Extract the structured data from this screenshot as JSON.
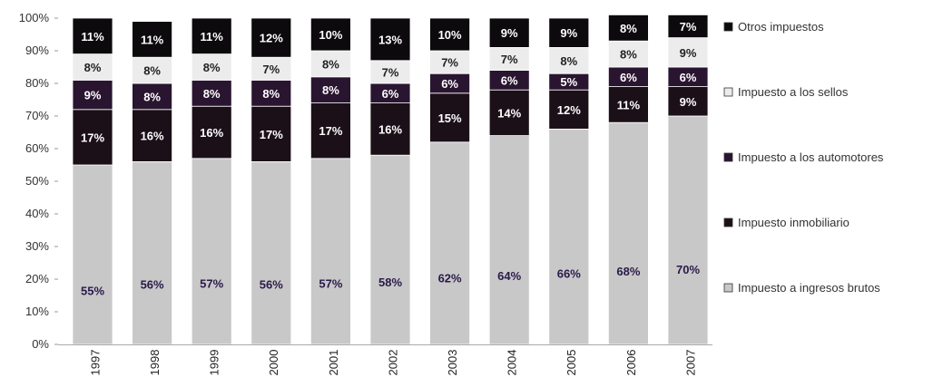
{
  "chart_data": {
    "type": "bar",
    "stacked": true,
    "percent": true,
    "title": "",
    "xlabel": "",
    "ylabel": "",
    "ylim": [
      0,
      100
    ],
    "y_ticks": [
      "0%",
      "10%",
      "20%",
      "30%",
      "40%",
      "50%",
      "60%",
      "70%",
      "80%",
      "90%",
      "100%"
    ],
    "categories": [
      "1997",
      "1998",
      "1999",
      "2000",
      "2001",
      "2002",
      "2003",
      "2004",
      "2005",
      "2006",
      "2007"
    ],
    "legend_position": "right",
    "series": [
      {
        "name": "Impuesto a ingresos brutos",
        "color": "#c8c8c8",
        "label_color": "#2a1a4a",
        "values": [
          55,
          56,
          57,
          56,
          57,
          58,
          62,
          64,
          66,
          68,
          70
        ]
      },
      {
        "name": "Impuesto inmobiliario",
        "color": "#1c1018",
        "label_color": "#ffffff",
        "values": [
          17,
          16,
          16,
          17,
          17,
          16,
          15,
          14,
          12,
          11,
          9
        ]
      },
      {
        "name": "Impuesto a los automotores",
        "color": "#2a1530",
        "label_color": "#ffffff",
        "values": [
          9,
          8,
          8,
          8,
          8,
          6,
          6,
          6,
          5,
          6,
          6
        ]
      },
      {
        "name": "Impuesto a los sellos",
        "color": "#ececec",
        "label_color": "#222222",
        "values": [
          8,
          8,
          8,
          7,
          8,
          7,
          7,
          7,
          8,
          8,
          9
        ]
      },
      {
        "name": "Otros impuestos",
        "color": "#0c0a0c",
        "label_color": "#ffffff",
        "values": [
          11,
          11,
          11,
          12,
          10,
          13,
          10,
          9,
          9,
          8,
          7
        ]
      }
    ],
    "legend_order": [
      "Otros impuestos",
      "Impuesto a los sellos",
      "Impuesto a los automotores",
      "Impuesto inmobiliario",
      "Impuesto a ingresos brutos"
    ]
  }
}
